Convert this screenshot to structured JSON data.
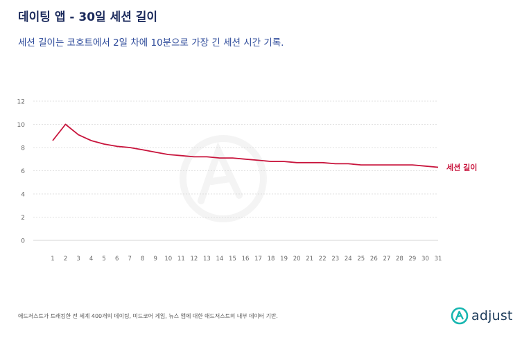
{
  "header": {
    "title": "데이팅 앱 - 30일 세션 길이",
    "subtitle": "세션 길이는 코호트에서 2일 차에 10분으로 가장 긴 세션 시간 기록."
  },
  "footer": {
    "note": "애드저스트가 트래킹한 전 세계 400개의 데이팅, 미드코어 게임, 뉴스 앱에 대한 애드저스트의 내부 데이터 기반.",
    "logo_text": "adjust"
  },
  "colors": {
    "series": "#c8143c",
    "grid": "#d6d6d6",
    "axis_text": "#666666"
  },
  "chart_data": {
    "type": "line",
    "x": [
      1,
      2,
      3,
      4,
      5,
      6,
      7,
      8,
      9,
      10,
      11,
      12,
      13,
      14,
      15,
      16,
      17,
      18,
      19,
      20,
      21,
      22,
      23,
      24,
      25,
      26,
      27,
      28,
      29,
      30,
      31
    ],
    "series": [
      {
        "name": "세션 길이",
        "values": [
          8.6,
          10.0,
          9.1,
          8.6,
          8.3,
          8.1,
          8.0,
          7.8,
          7.6,
          7.4,
          7.3,
          7.2,
          7.2,
          7.1,
          7.1,
          7.0,
          6.9,
          6.8,
          6.8,
          6.7,
          6.7,
          6.7,
          6.6,
          6.6,
          6.5,
          6.5,
          6.5,
          6.5,
          6.5,
          6.4,
          6.3
        ]
      }
    ],
    "ylim": [
      0,
      12
    ],
    "yticks": [
      0,
      2,
      4,
      6,
      8,
      10,
      12
    ],
    "grid": true,
    "legend": "right-end label"
  }
}
